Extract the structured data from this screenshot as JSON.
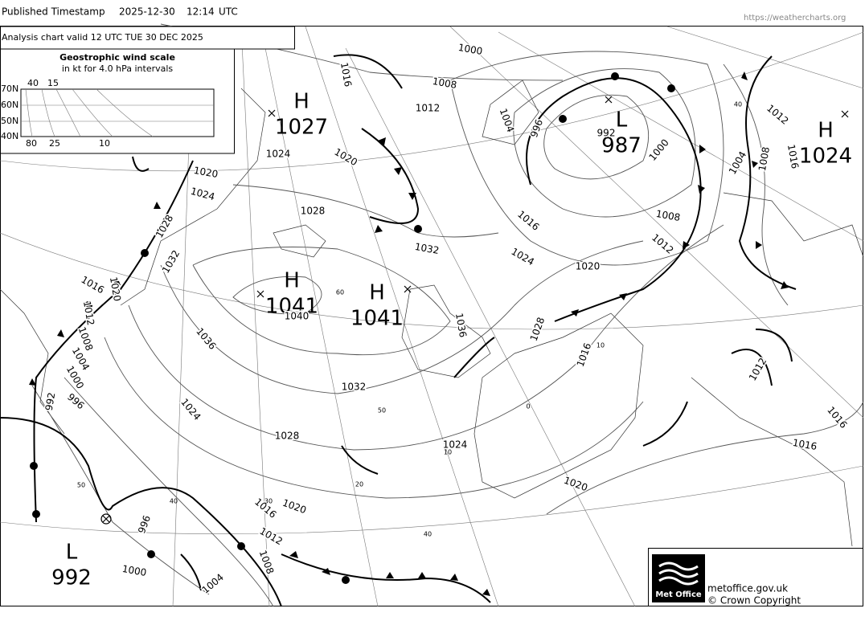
{
  "header": {
    "label": "Published Timestamp",
    "date": "2025-12-30",
    "time": "12:14",
    "zone": "UTC",
    "url": "https://weathercharts.org"
  },
  "chart": {
    "title": "Analysis chart  valid 12 UTC TUE 30  DEC 2025"
  },
  "wind_scale": {
    "title": "Geostrophic wind scale",
    "subtitle": "in kt for 4.0 hPa intervals",
    "latitudes": [
      "70N",
      "60N",
      "50N",
      "40N"
    ],
    "top_labels": [
      "40",
      "15"
    ],
    "bottom_labels": [
      "80",
      "25",
      "10"
    ]
  },
  "centers": [
    {
      "type": "H",
      "pressure": "1027"
    },
    {
      "type": "L",
      "pressure": "987"
    },
    {
      "type": "H",
      "pressure": "1024"
    },
    {
      "type": "H",
      "pressure": "1041"
    },
    {
      "type": "H",
      "pressure": "1041"
    },
    {
      "type": "L",
      "pressure": "992"
    }
  ],
  "isobar_labels": [
    "1000",
    "1008",
    "1012",
    "1016",
    "1024",
    "1020",
    "1020",
    "1024",
    "1028",
    "1032",
    "1028",
    "1032",
    "1016",
    "1020",
    "1012",
    "1008",
    "1004",
    "1000",
    "996",
    "992",
    "1040",
    "1036",
    "1036",
    "1032",
    "1024",
    "1028",
    "1024",
    "1020",
    "1016",
    "1020",
    "1012",
    "1008",
    "1004",
    "1000",
    "996",
    "1016",
    "1024",
    "1020",
    "1008",
    "1012",
    "1000",
    "992",
    "996",
    "1004",
    "1028",
    "1016",
    "1012",
    "1016",
    "1016",
    "1004",
    "1008",
    "1016",
    "1012"
  ],
  "lat_labels": [
    "60",
    "50",
    "40",
    "30",
    "20",
    "10",
    "0",
    "10",
    "40",
    "50",
    "40"
  ],
  "footer": {
    "logo": "Met Office",
    "site": "metoffice.gov.uk",
    "copyright": "© Crown Copyright"
  }
}
